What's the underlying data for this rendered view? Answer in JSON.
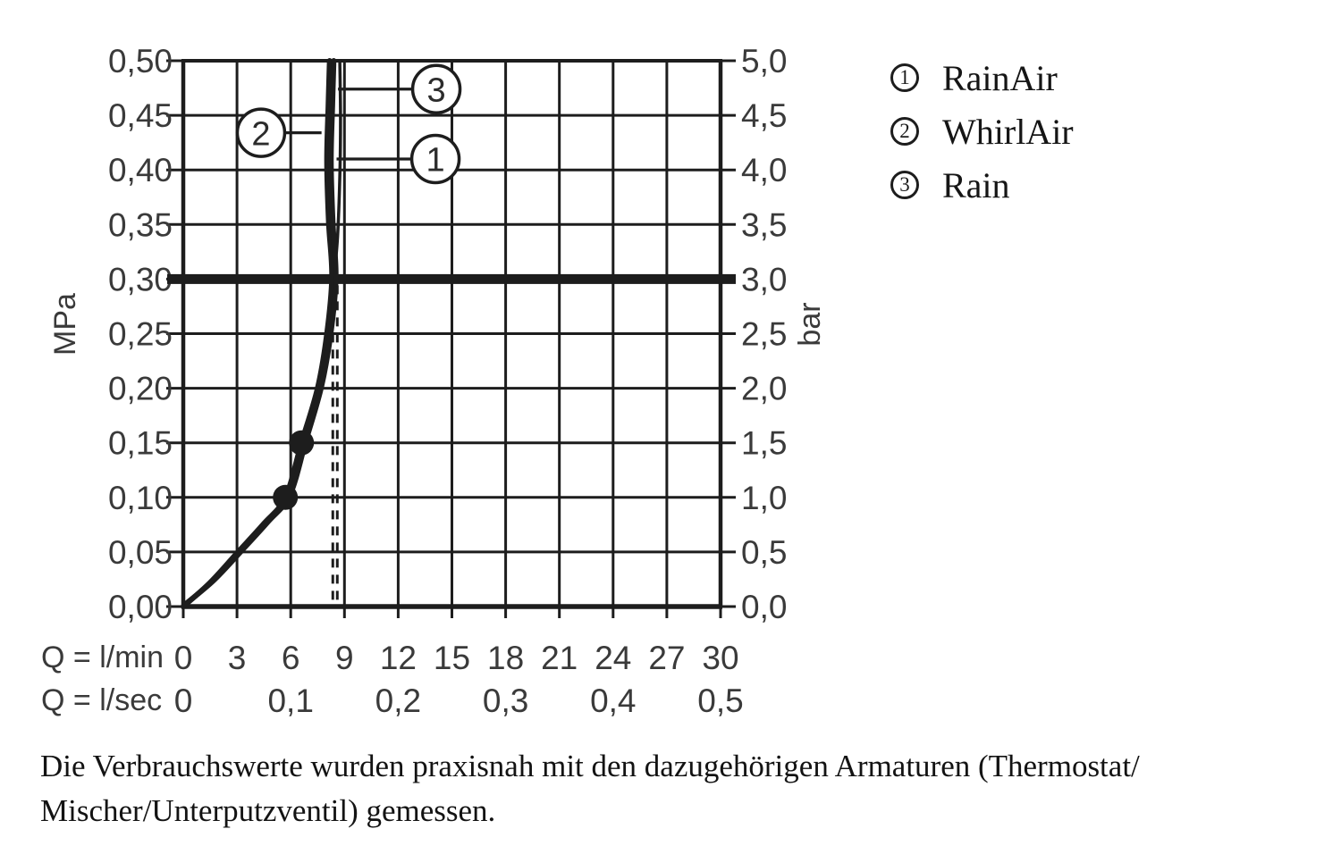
{
  "page": {
    "background": "#ffffff",
    "ink": "#1d1d1d"
  },
  "chart_data": {
    "type": "line",
    "description": "Flow rate vs. pressure curves for shower spray modes",
    "x_axis": {
      "label_lmin": "Q = l/min",
      "label_lsec": "Q = l/sec",
      "range_lmin": [
        0,
        30
      ],
      "ticks_lmin": [
        {
          "label": "0",
          "lmin": 0
        },
        {
          "label": "3",
          "lmin": 3
        },
        {
          "label": "6",
          "lmin": 6
        },
        {
          "label": "9",
          "lmin": 9
        },
        {
          "label": "12",
          "lmin": 12
        },
        {
          "label": "15",
          "lmin": 15
        },
        {
          "label": "18",
          "lmin": 18
        },
        {
          "label": "21",
          "lmin": 21
        },
        {
          "label": "24",
          "lmin": 24
        },
        {
          "label": "27",
          "lmin": 27
        },
        {
          "label": "30",
          "lmin": 30
        }
      ],
      "ticks_lsec": [
        {
          "label": "0",
          "lmin": 0
        },
        {
          "label": "0,1",
          "lmin": 6
        },
        {
          "label": "0,2",
          "lmin": 12
        },
        {
          "label": "0,3",
          "lmin": 18
        },
        {
          "label": "0,4",
          "lmin": 24
        },
        {
          "label": "0,5",
          "lmin": 30
        }
      ]
    },
    "y_axis_left": {
      "unit": "MPa",
      "range": [
        0,
        0.5
      ],
      "ticks": [
        {
          "label": "0,50",
          "mpa": 0.5
        },
        {
          "label": "0,45",
          "mpa": 0.45
        },
        {
          "label": "0,40",
          "mpa": 0.4
        },
        {
          "label": "0,35",
          "mpa": 0.35
        },
        {
          "label": "0,30",
          "mpa": 0.3
        },
        {
          "label": "0,25",
          "mpa": 0.25
        },
        {
          "label": "0,20",
          "mpa": 0.2
        },
        {
          "label": "0,15",
          "mpa": 0.15
        },
        {
          "label": "0,10",
          "mpa": 0.1
        },
        {
          "label": "0,05",
          "mpa": 0.05
        },
        {
          "label": "0,00",
          "mpa": 0.0
        }
      ]
    },
    "y_axis_right": {
      "unit": "bar",
      "ticks": [
        {
          "label": "5,0",
          "mpa": 0.5
        },
        {
          "label": "4,5",
          "mpa": 0.45
        },
        {
          "label": "4,0",
          "mpa": 0.4
        },
        {
          "label": "3,5",
          "mpa": 0.35
        },
        {
          "label": "3,0",
          "mpa": 0.3
        },
        {
          "label": "2,5",
          "mpa": 0.25
        },
        {
          "label": "2,0",
          "mpa": 0.2
        },
        {
          "label": "1,5",
          "mpa": 0.15
        },
        {
          "label": "1,0",
          "mpa": 0.1
        },
        {
          "label": "0,5",
          "mpa": 0.05
        },
        {
          "label": "0,0",
          "mpa": 0.0
        }
      ]
    },
    "reference_line": {
      "mpa": 0.3,
      "bar": 3.0
    },
    "dashed_lines_lmin": [
      8.35,
      8.6
    ],
    "series": [
      {
        "name": "RainAir",
        "num": "1",
        "style": "thin",
        "points": [
          [
            8.42,
            0.302
          ],
          [
            8.62,
            0.34
          ],
          [
            8.75,
            0.4
          ],
          [
            8.78,
            0.45
          ],
          [
            8.74,
            0.5
          ]
        ]
      },
      {
        "name": "WhirlAir",
        "num": "2",
        "style": "thick",
        "points": [
          [
            0,
            0
          ],
          [
            1.5,
            0.022
          ],
          [
            3.0,
            0.049
          ],
          [
            4.5,
            0.076
          ],
          [
            5.7,
            0.1
          ],
          [
            6.6,
            0.15
          ],
          [
            7.5,
            0.2
          ],
          [
            8.02,
            0.25
          ],
          [
            8.3,
            0.302
          ],
          [
            8.12,
            0.352
          ],
          [
            8.02,
            0.408
          ],
          [
            8.1,
            0.46
          ],
          [
            8.17,
            0.5
          ]
        ]
      },
      {
        "name": "Rain",
        "num": "3",
        "style": "thick",
        "points": [
          [
            0.1,
            0.002
          ],
          [
            1.7,
            0.024
          ],
          [
            3.25,
            0.051
          ],
          [
            4.75,
            0.078
          ],
          [
            5.95,
            0.102
          ],
          [
            6.85,
            0.152
          ],
          [
            7.72,
            0.202
          ],
          [
            8.25,
            0.252
          ],
          [
            8.52,
            0.302
          ],
          [
            8.35,
            0.352
          ],
          [
            8.25,
            0.408
          ],
          [
            8.33,
            0.46
          ],
          [
            8.4,
            0.5
          ]
        ]
      }
    ],
    "markers_lmin_mpa": [
      [
        5.7,
        0.1
      ],
      [
        6.6,
        0.15
      ]
    ],
    "callouts": [
      {
        "num": "3",
        "x_lmin": 14.13,
        "y_mpa": 0.474,
        "points_to_lmin": 8.64
      },
      {
        "num": "2",
        "x_lmin": 4.34,
        "y_mpa": 0.434,
        "points_to_lmin": 7.72
      },
      {
        "num": "1",
        "x_lmin": 14.08,
        "y_mpa": 0.41,
        "points_to_lmin": 8.56
      }
    ]
  },
  "legend": {
    "items": [
      {
        "num": "1",
        "label": "RainAir"
      },
      {
        "num": "2",
        "label": "WhirlAir"
      },
      {
        "num": "3",
        "label": "Rain"
      }
    ]
  },
  "caption": {
    "line1": "Die Verbrauchswerte wurden praxisnah mit den dazugehörigen Armaturen (Thermostat/",
    "line2": "Mischer/Unterputzventil) gemessen."
  }
}
